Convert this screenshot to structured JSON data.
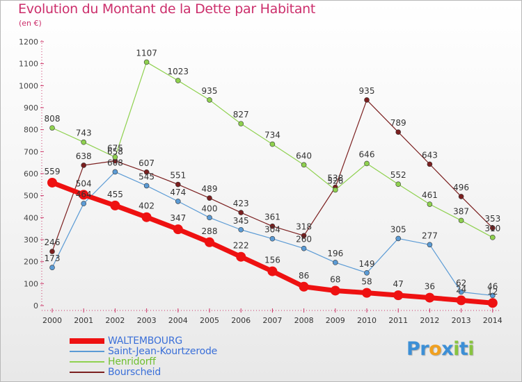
{
  "chart_data": {
    "type": "line",
    "title": "Evolution du Montant de la Dette par Habitant",
    "subtitle": "(en €)",
    "x": [
      "2000",
      "2001",
      "2002",
      "2003",
      "2004",
      "2005",
      "2006",
      "2007",
      "2008",
      "2009",
      "2010",
      "2011",
      "2012",
      "2013",
      "2014"
    ],
    "ylim": [
      0,
      1200
    ],
    "yticks": [
      0,
      100,
      200,
      300,
      400,
      500,
      600,
      700,
      800,
      900,
      1000,
      1100,
      1200
    ],
    "grid": false,
    "legend_position": "bottom-left",
    "series": [
      {
        "name": "WALTEMBOURG",
        "color": "#ee1111",
        "values": [
          559,
          504,
          455,
          402,
          347,
          288,
          222,
          156,
          86,
          68,
          58,
          47,
          36,
          24,
          12
        ]
      },
      {
        "name": "Saint-Jean-Kourtzerode",
        "color": "#5b9bd5",
        "values": [
          173,
          464,
          608,
          545,
          474,
          400,
          345,
          304,
          260,
          196,
          149,
          305,
          277,
          62,
          46
        ]
      },
      {
        "name": "Henridorff",
        "color": "#8fd14f",
        "values": [
          808,
          743,
          675,
          1107,
          1023,
          935,
          827,
          734,
          640,
          526,
          646,
          552,
          461,
          387,
          310
        ]
      },
      {
        "name": "Bourscheid",
        "color": "#7b1f1f",
        "values": [
          246,
          638,
          658,
          607,
          551,
          489,
          423,
          361,
          318,
          538,
          935,
          789,
          643,
          496,
          353
        ]
      }
    ]
  },
  "logo": {
    "text": "Proxiti",
    "letters": [
      "P",
      "r",
      "o",
      "x",
      "i",
      "t",
      "i"
    ],
    "colors": [
      "#3c8fd6",
      "#3c8fd6",
      "#f0a020",
      "#3c8fd6",
      "#88c440",
      "#3c8fd6",
      "#88c440"
    ]
  }
}
